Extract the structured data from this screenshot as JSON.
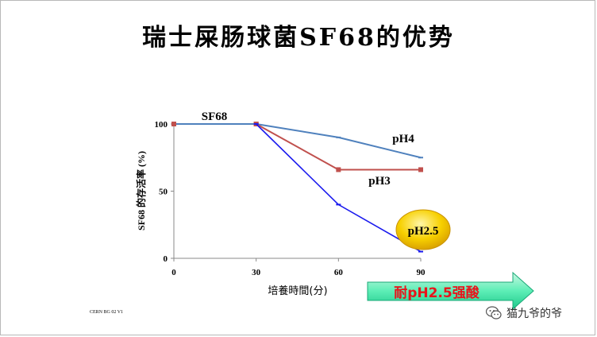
{
  "slide": {
    "title": "瑞士屎肠球菌SF68的优势",
    "footnote": "CERN BG 02 V1",
    "watermark": "猫九爷的爷",
    "arrow_label": "耐pH2.5强酸",
    "badge_label": "pH2.5"
  },
  "chart_data": {
    "type": "line",
    "title": "",
    "xlabel": "培養時間(分)",
    "ylabel": "SF68 的存活率 (%)",
    "x": [
      0,
      30,
      60,
      90
    ],
    "xlim": [
      0,
      90
    ],
    "ylim": [
      0,
      100
    ],
    "xticks": [
      "0",
      "30",
      "60",
      "90"
    ],
    "yticks": [
      "0",
      "50",
      "100"
    ],
    "grid": false,
    "series": [
      {
        "name": "SF68",
        "values": [
          100,
          100,
          null,
          null
        ],
        "color": "#4f81bd"
      },
      {
        "name": "pH4",
        "values": [
          null,
          100,
          90,
          75
        ],
        "color": "#4f81bd"
      },
      {
        "name": "pH3",
        "values": [
          null,
          100,
          66,
          66
        ],
        "color": "#c0504d"
      },
      {
        "name": "pH2.5",
        "values": [
          null,
          100,
          40,
          5
        ],
        "color": "#1a1aee"
      }
    ]
  },
  "colors": {
    "arrow_fill_start": "#b9f5d8",
    "arrow_fill_end": "#2ee6a0",
    "badge_fill": "#f7c900",
    "arrow_text": "#e8141b"
  }
}
